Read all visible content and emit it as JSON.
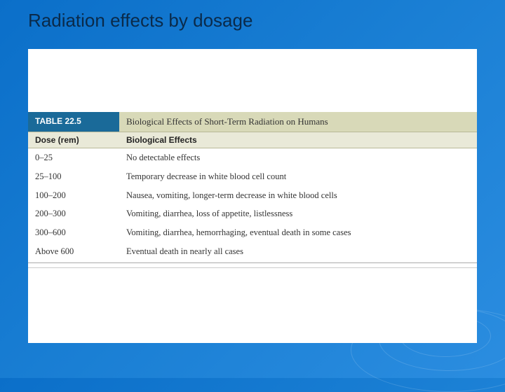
{
  "slide": {
    "title": "Radiation effects by dosage"
  },
  "table": {
    "type": "table",
    "label": "TABLE 22.5",
    "caption": "Biological Effects of Short-Term Radiation on Humans",
    "columns": [
      "Dose (rem)",
      "Biological Effects"
    ],
    "rows": [
      {
        "dose": "0–25",
        "effect": "No detectable effects"
      },
      {
        "dose": "25–100",
        "effect": "Temporary decrease in white blood cell count"
      },
      {
        "dose": "100–200",
        "effect": "Nausea, vomiting, longer-term decrease in white blood cells"
      },
      {
        "dose": "200–300",
        "effect": "Vomiting, diarrhea, loss of appetite, listlessness"
      },
      {
        "dose": "300–600",
        "effect": "Vomiting, diarrhea, hemorrhaging, eventual death in some cases"
      },
      {
        "dose": "Above 600",
        "effect": "Eventual death in nearly all cases"
      }
    ],
    "colors": {
      "tab_bg": "#1a6a99",
      "tab_text": "#ffffff",
      "caption_bg": "#d8d9b8",
      "header_bg": "#e9e9d8",
      "border": "#b8b898",
      "text": "#333333"
    }
  },
  "background": {
    "gradient_start": "#0b6fc9",
    "gradient_end": "#2b8de0"
  }
}
